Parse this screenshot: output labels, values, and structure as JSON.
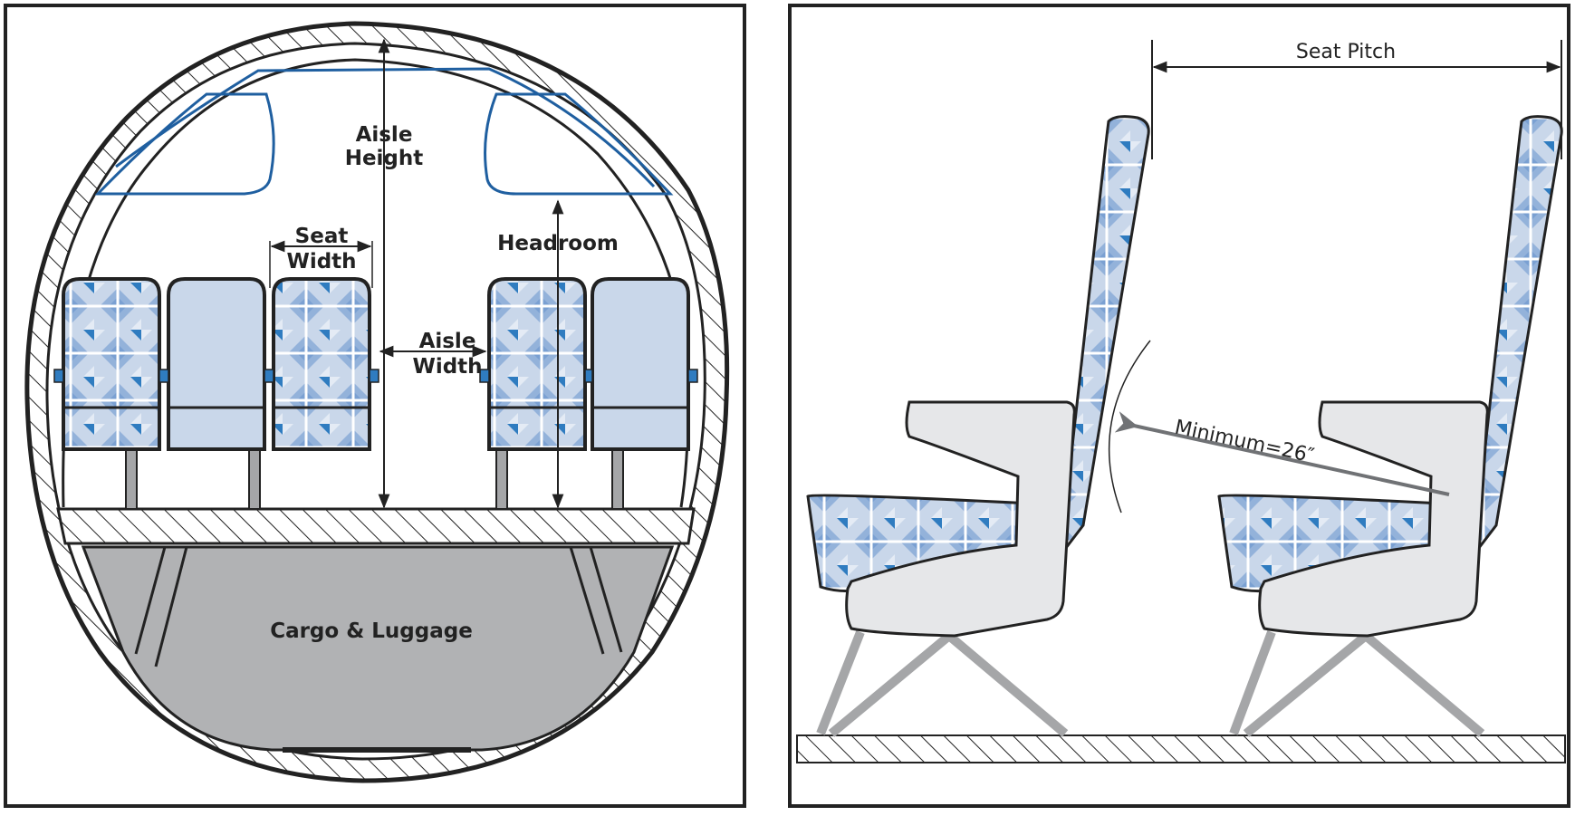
{
  "cross_section": {
    "labels": {
      "aisle_height": [
        "Aisle",
        "Height"
      ],
      "seat_width": [
        "Seat",
        "Width"
      ],
      "headroom": "Headroom",
      "aisle_width": [
        "Aisle",
        "Width"
      ],
      "cargo": "Cargo & Luggage"
    }
  },
  "side_view": {
    "labels": {
      "seat_pitch": "Seat Pitch",
      "minimum": "Minimum=26″"
    }
  },
  "colors": {
    "outline": "#222222",
    "window": "#1f5fa0",
    "seat_light": "#c9d7ea",
    "seat_mid": "#93b2da",
    "seat_dark": "#2f7cc0",
    "shell": "#e6e7e9",
    "cargo": "#b1b2b4",
    "leg": "#a5a6a8",
    "annotation_arrow": "#707275"
  }
}
